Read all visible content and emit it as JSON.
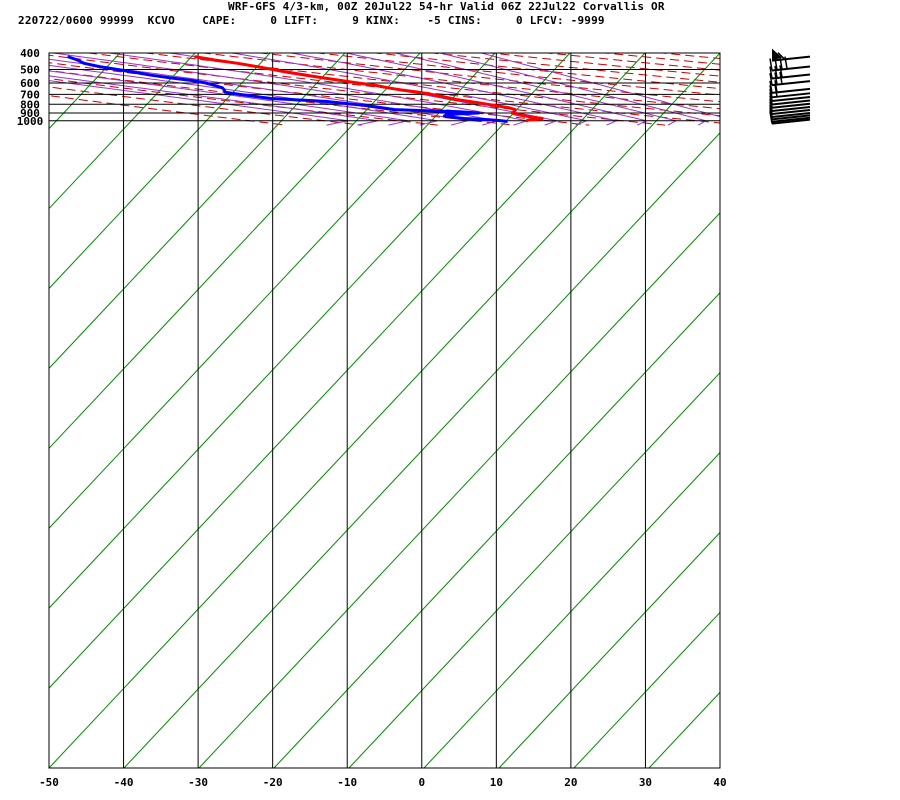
{
  "header": {
    "line1": "WRF-GFS 4/3-km, 00Z 20Jul22 54-hr Valid 06Z 22Jul22 Corvallis OR",
    "line2": "220722/0600 99999  KCVO    CAPE:     0 LIFT:     9 KINX:    -5 CINS:     0 LFCV: -9999"
  },
  "chart_data": {
    "type": "skew-t",
    "title": "WRF-GFS 4/3-km, 00Z 20Jul22 54-hr Valid 06Z 22Jul22 Corvallis OR",
    "xlabel": "",
    "ylabel": "",
    "x_ticks": [
      "-50",
      "-40",
      "-30",
      "-20",
      "-10",
      "0",
      "10",
      "20",
      "30",
      "40"
    ],
    "y_ticks": [
      "400",
      "500",
      "600",
      "700",
      "800",
      "900",
      "1000"
    ],
    "xlim": [
      -50,
      40
    ],
    "ylim": [
      1045,
      400
    ],
    "log_pressure_axis": true,
    "grid": true,
    "series": [
      {
        "label": "temperature",
        "color": "#ff0000",
        "points": [
          [
            1010,
            14
          ],
          [
            1000,
            14
          ],
          [
            990,
            14.3
          ],
          [
            980,
            15.8
          ],
          [
            970,
            16.4
          ],
          [
            950,
            15.2
          ],
          [
            925,
            13.9
          ],
          [
            900,
            13.2
          ],
          [
            880,
            13.8
          ],
          [
            860,
            14.1
          ],
          [
            840,
            13.6
          ],
          [
            810,
            11.8
          ],
          [
            780,
            9.9
          ],
          [
            750,
            7.7
          ],
          [
            720,
            6.3
          ],
          [
            700,
            5.1
          ],
          [
            680,
            3.8
          ],
          [
            660,
            1.8
          ],
          [
            640,
            0.3
          ],
          [
            620,
            -1.0
          ],
          [
            600,
            -3.0
          ],
          [
            580,
            -4.9
          ],
          [
            560,
            -6.9
          ],
          [
            540,
            -8.9
          ],
          [
            520,
            -10.8
          ],
          [
            500,
            -12.4
          ],
          [
            480,
            -14.2
          ],
          [
            460,
            -16.2
          ],
          [
            440,
            -18.8
          ],
          [
            420,
            -21.0
          ]
        ]
      },
      {
        "label": "dewpoint",
        "color": "#0000ff",
        "points": [
          [
            1010,
            11.3
          ],
          [
            1000,
            10.6
          ],
          [
            985,
            8.9
          ],
          [
            970,
            5.9
          ],
          [
            955,
            4.5
          ],
          [
            940,
            3.6
          ],
          [
            925,
            4.0
          ],
          [
            910,
            6.1
          ],
          [
            900,
            8.7
          ],
          [
            885,
            6.3
          ],
          [
            870,
            1.1
          ],
          [
            860,
            -2.1
          ],
          [
            840,
            -3.6
          ],
          [
            810,
            -5.7
          ],
          [
            770,
            -10.1
          ],
          [
            740,
            -17.0
          ],
          [
            700,
            -20.6
          ],
          [
            680,
            -22.2
          ],
          [
            660,
            -22.0
          ],
          [
            640,
            -21.9
          ],
          [
            620,
            -22.6
          ],
          [
            600,
            -23.4
          ],
          [
            580,
            -24.9
          ],
          [
            560,
            -27.4
          ],
          [
            540,
            -29.6
          ],
          [
            520,
            -31.3
          ],
          [
            500,
            -33.3
          ],
          [
            480,
            -35.3
          ],
          [
            460,
            -36.8
          ],
          [
            440,
            -37.2
          ],
          [
            420,
            -38.0
          ]
        ]
      }
    ],
    "background_lines": {
      "dry_adiabats_color": "#cc0000",
      "moist_adiabats_color": "#9933cc",
      "mixing_ratio_color": "#008800"
    },
    "wind_barbs": [
      {
        "pressure": 420,
        "barbs": "pennant+short"
      },
      {
        "pressure": 480,
        "barbs": "4 long"
      },
      {
        "pressure": 535,
        "barbs": "3 long"
      },
      {
        "pressure": 585,
        "barbs": "3 long"
      },
      {
        "pressure": 650,
        "barbs": "2 long"
      },
      {
        "pressure": 690,
        "barbs": "2 long"
      },
      {
        "pressure": 725,
        "barbs": "1 long"
      },
      {
        "pressure": 760,
        "barbs": "1 long"
      },
      {
        "pressure": 795,
        "barbs": "1 long"
      },
      {
        "pressure": 830,
        "barbs": "1 long"
      },
      {
        "pressure": 865,
        "barbs": "1 long"
      },
      {
        "pressure": 900,
        "barbs": "1 long"
      },
      {
        "pressure": 930,
        "barbs": "1 long"
      },
      {
        "pressure": 960,
        "barbs": "1 long"
      },
      {
        "pressure": 985,
        "barbs": "1 long"
      }
    ]
  }
}
